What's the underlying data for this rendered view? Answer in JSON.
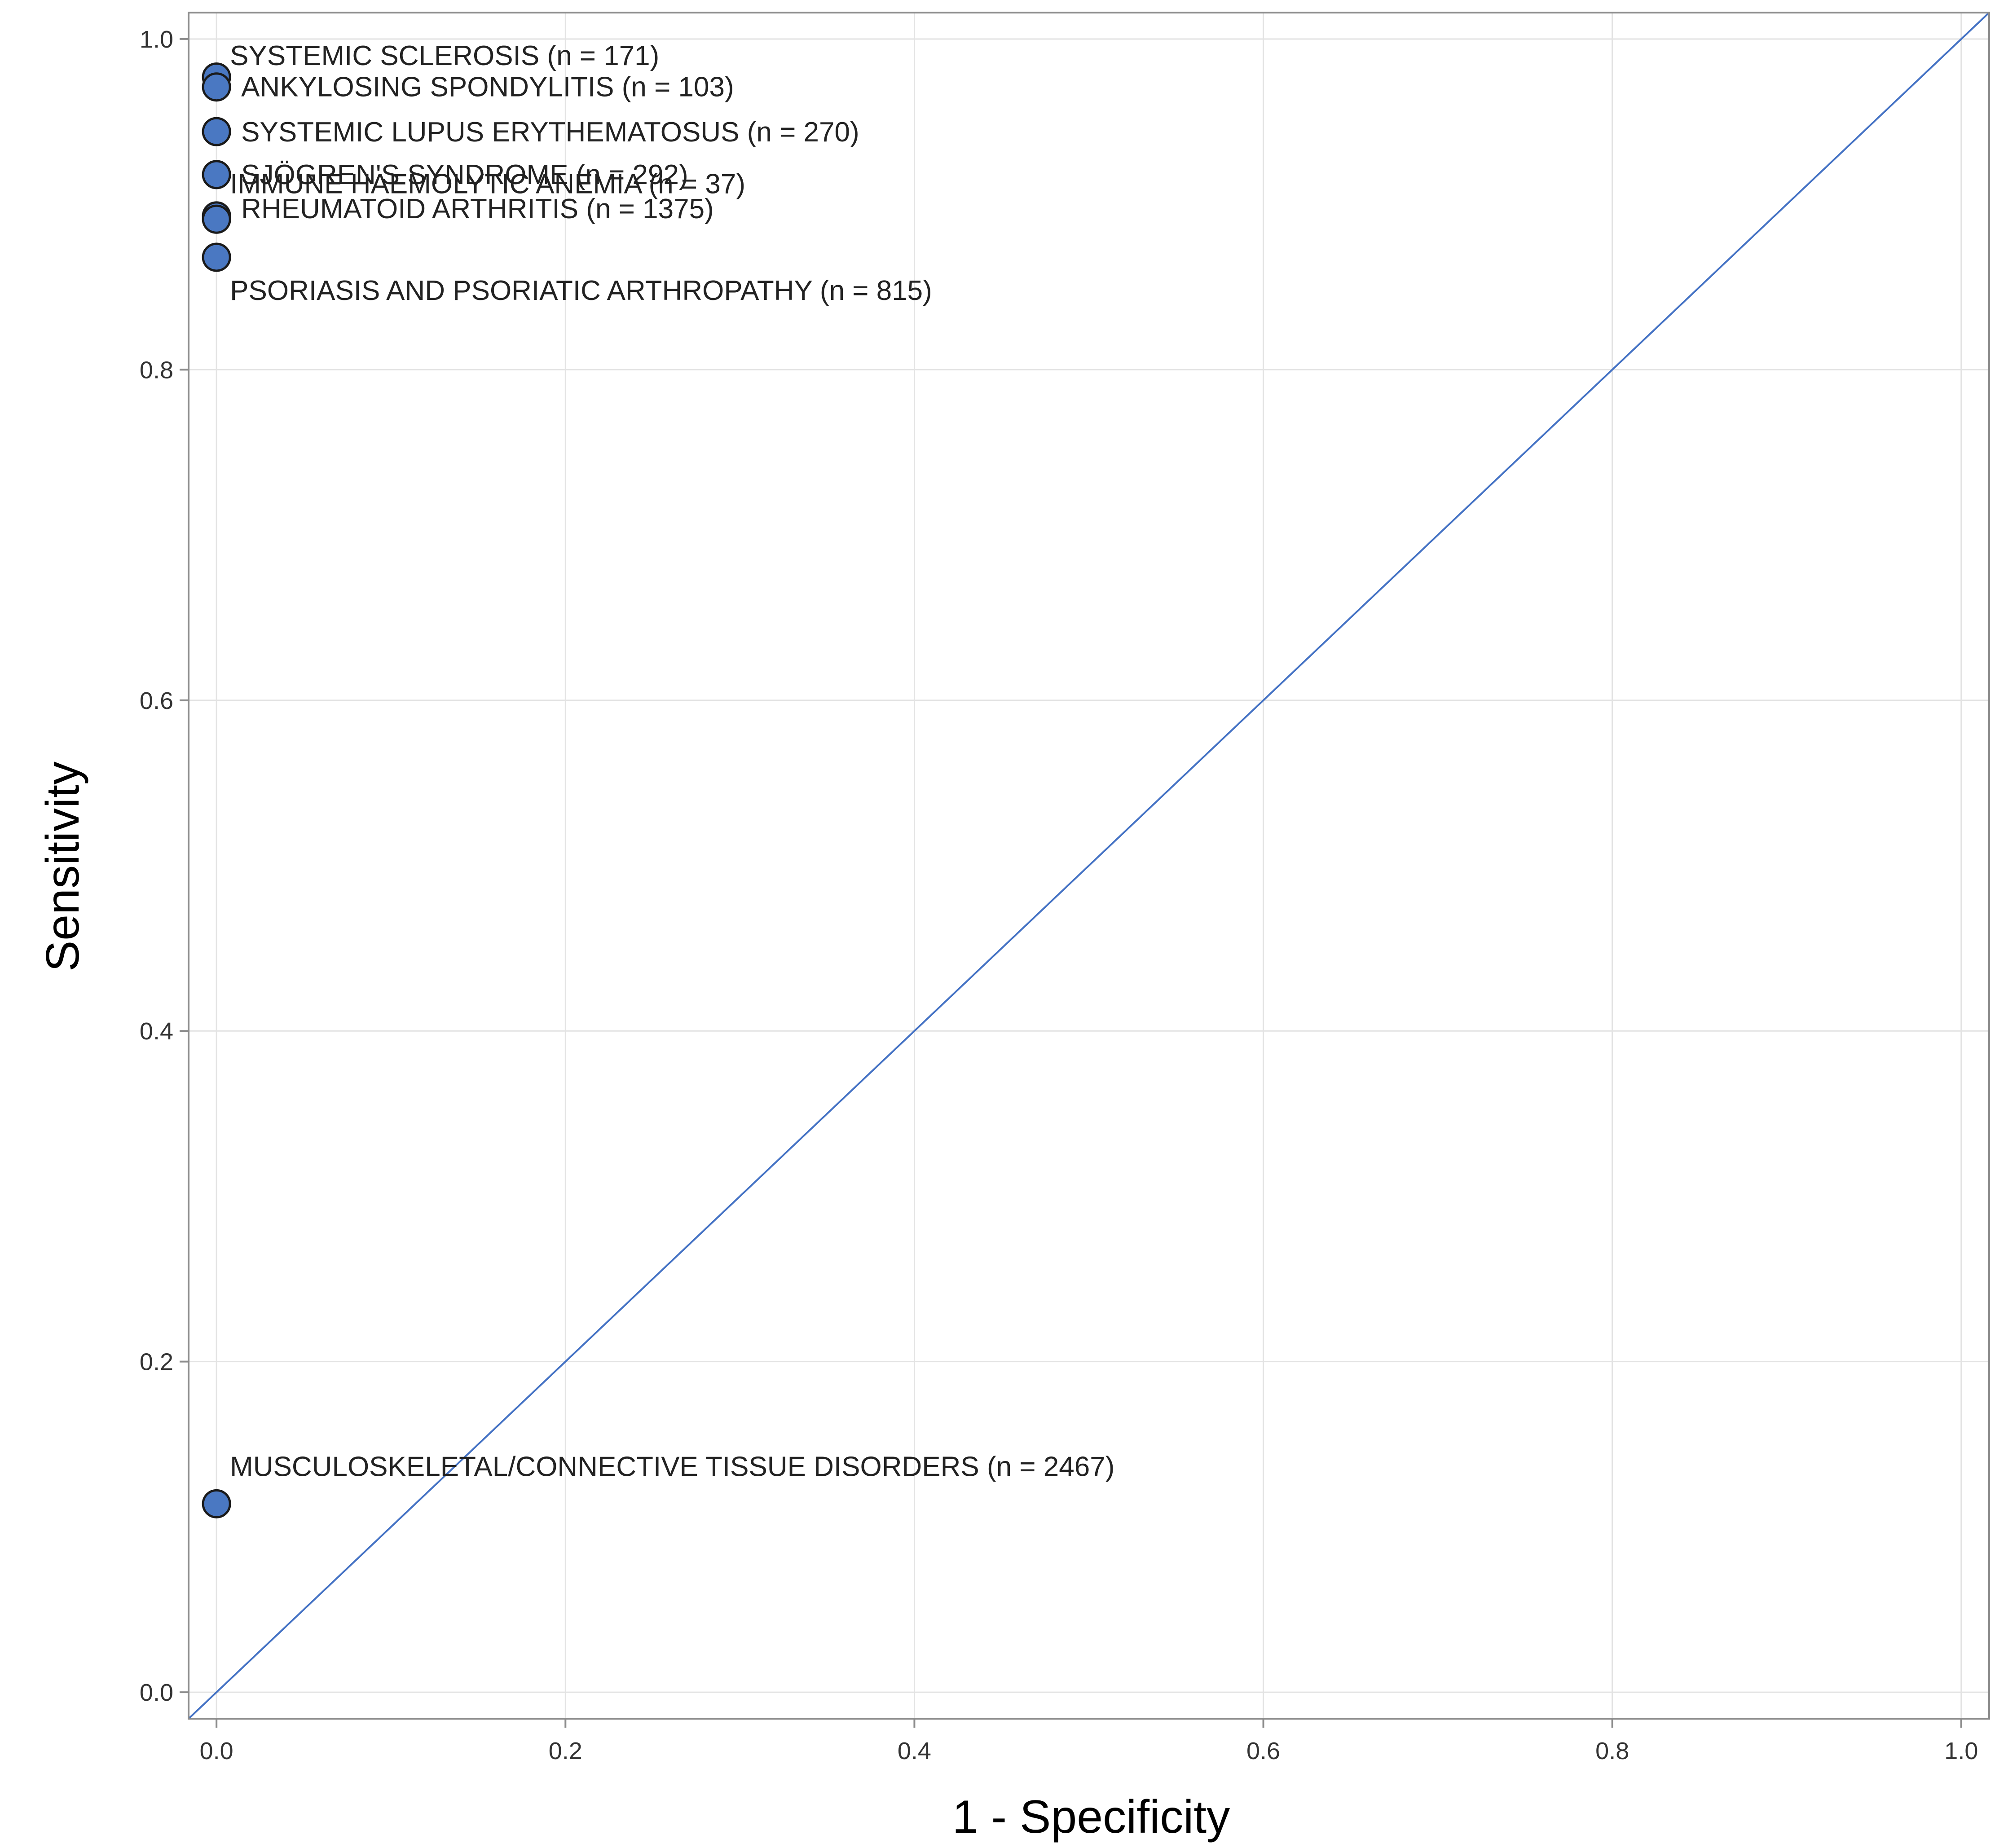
{
  "chart_data": {
    "type": "scatter",
    "title": "",
    "xlabel": "1 - Specificity",
    "ylabel": "Sensitivity",
    "xlim": [
      -0.016,
      1.016
    ],
    "ylim": [
      -0.016,
      1.016
    ],
    "x_ticks": [
      "0.0",
      "0.2",
      "0.4",
      "0.6",
      "0.8",
      "1.0"
    ],
    "y_ticks": [
      "0.0",
      "0.2",
      "0.4",
      "0.6",
      "0.8",
      "1.0"
    ],
    "grid": true,
    "legend": "none",
    "reference_line": {
      "from": [
        0,
        0
      ],
      "to": [
        1,
        1
      ],
      "color": "#4472c4"
    },
    "marker_color": "#4a78c2",
    "points": [
      {
        "label": "SYSTEMIC SCLEROSIS (n = 171)",
        "x": 0.0,
        "y": 0.977
      },
      {
        "label": "ANKYLOSING SPONDYLITIS (n = 103)",
        "x": 0.0,
        "y": 0.971
      },
      {
        "label": "SYSTEMIC LUPUS ERYTHEMATOSUS (n = 270)",
        "x": 0.0,
        "y": 0.944
      },
      {
        "label": "SJÖGREN'S SYNDROME (n = 292)",
        "x": 0.0,
        "y": 0.918
      },
      {
        "label": "RHEUMATOID ARTHRITIS (n = 1375)",
        "x": 0.0,
        "y": 0.893
      },
      {
        "label": "IMMUNE HAEMOLYTIC ANEMIA (n = 37)",
        "x": 0.0,
        "y": 0.891
      },
      {
        "label": "PSORIASIS AND PSORIATIC ARTHROPATHY (n = 815)",
        "x": 0.0,
        "y": 0.868
      },
      {
        "label": "MUSCULOSKELETAL/CONNECTIVE TISSUE DISORDERS (n = 2467)",
        "x": 0.0,
        "y": 0.114
      }
    ]
  }
}
